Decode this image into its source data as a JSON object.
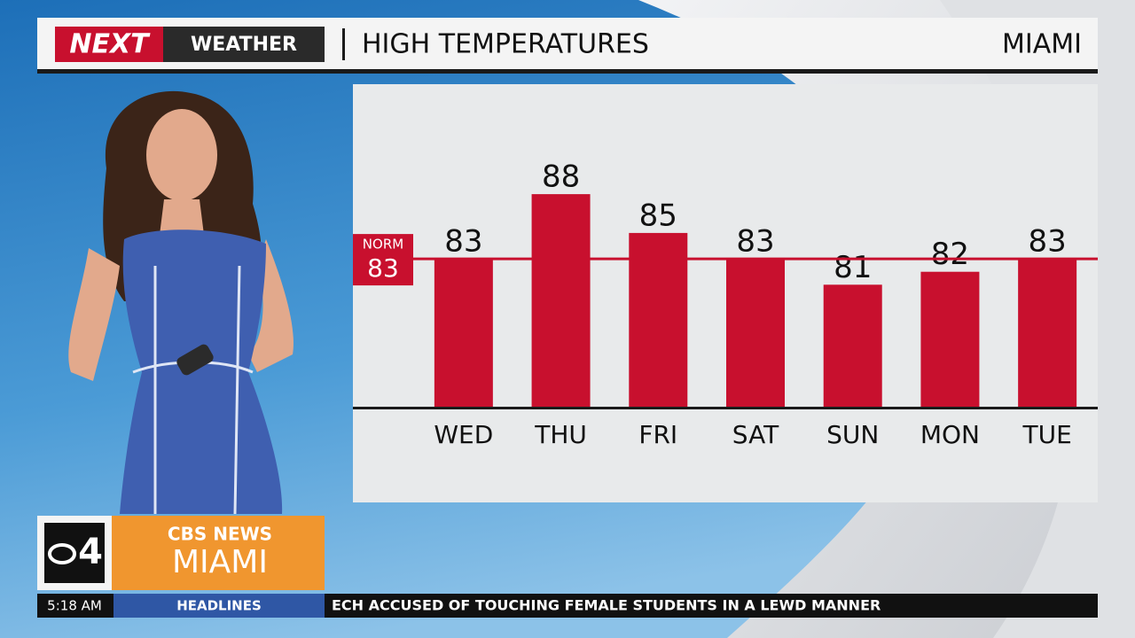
{
  "header": {
    "logo": "NEXT",
    "brand": "WEATHER",
    "title": "HIGH TEMPERATURES",
    "location": "MIAMI"
  },
  "chart_data": {
    "type": "bar",
    "categories": [
      "WED",
      "THU",
      "FRI",
      "SAT",
      "SUN",
      "MON",
      "TUE"
    ],
    "values": [
      83,
      88,
      85,
      83,
      81,
      82,
      83
    ],
    "color": "#c8102e",
    "ylim": [
      71.5,
      96.5
    ],
    "norm": {
      "label": "NORM",
      "value": 83
    }
  },
  "station": {
    "channel": "4",
    "network": "CBS NEWS",
    "city": "MIAMI"
  },
  "ticker": {
    "time": "5:18 AM",
    "section": "HEADLINES",
    "text": "ECH ACCUSED OF TOUCHING FEMALE STUDENTS IN A LEWD MANNER"
  }
}
